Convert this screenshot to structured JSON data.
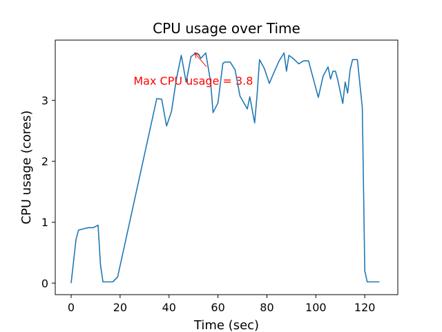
{
  "chart_data": {
    "type": "line",
    "title": "CPU usage over Time",
    "xlabel": "Time (sec)",
    "ylabel": "CPU usage (cores)",
    "xlim": [
      -6.5,
      133.5
    ],
    "ylim": [
      -0.19,
      3.99
    ],
    "xticks": [
      0,
      20,
      40,
      60,
      80,
      100,
      120
    ],
    "yticks": [
      0,
      1,
      2,
      3
    ],
    "grid": false,
    "line_color": "#1f77b4",
    "annotation": {
      "text": "Max CPU usage = 3.8",
      "color": "#ff0000",
      "point": [
        50.5,
        3.78
      ],
      "text_at": [
        25.5,
        3.26
      ]
    },
    "series": [
      {
        "x": [
          0,
          2,
          3,
          5,
          7,
          9,
          11,
          12,
          13,
          15,
          17,
          19,
          35,
          37,
          39,
          41,
          43,
          45,
          47,
          49,
          51,
          52,
          53,
          55,
          57,
          58,
          60,
          62,
          63,
          65,
          67,
          69,
          71,
          72,
          73,
          75,
          76,
          77,
          79,
          81,
          83,
          85,
          87,
          88,
          89,
          91,
          93,
          95,
          97,
          99,
          101,
          103,
          105,
          106,
          107,
          108,
          109,
          111,
          112,
          113,
          114,
          115,
          117,
          119,
          120,
          121,
          122,
          123,
          124,
          126
        ],
        "y": [
          0,
          0.72,
          0.87,
          0.89,
          0.91,
          0.91,
          0.95,
          0.3,
          0.02,
          0.02,
          0.02,
          0.1,
          3.03,
          3.02,
          2.58,
          2.82,
          3.35,
          3.74,
          3.3,
          3.72,
          3.78,
          3.76,
          3.69,
          3.78,
          3.3,
          2.8,
          2.96,
          3.61,
          3.63,
          3.63,
          3.5,
          3.07,
          2.93,
          2.86,
          3.06,
          2.63,
          3.1,
          3.67,
          3.52,
          3.28,
          3.47,
          3.65,
          3.78,
          3.48,
          3.74,
          3.68,
          3.6,
          3.65,
          3.65,
          3.35,
          3.05,
          3.4,
          3.55,
          3.35,
          3.48,
          3.48,
          3.33,
          2.95,
          3.3,
          3.12,
          3.5,
          3.67,
          3.67,
          2.88,
          0.2,
          0.02,
          0.02,
          0.02,
          0.02,
          0.02
        ]
      }
    ]
  }
}
